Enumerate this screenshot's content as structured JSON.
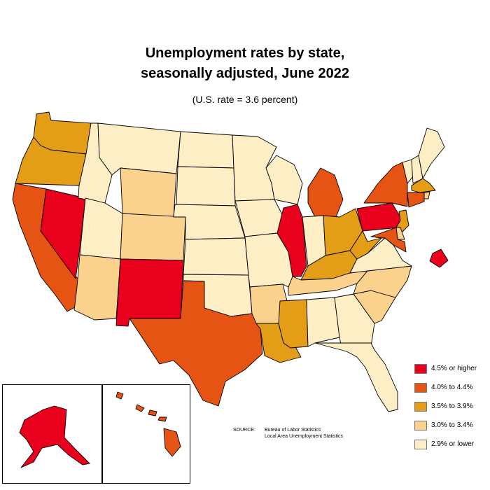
{
  "title_line1": "Unemployment rates by state,",
  "title_line2": "seasonally adjusted, June 2022",
  "subtitle": "(U.S. rate = 3.6 percent)",
  "legend": [
    {
      "label": "4.5% or higher",
      "color": "#e8001c"
    },
    {
      "label": "4.0% to 4.4%",
      "color": "#e65414"
    },
    {
      "label": "3.5% to 3.9%",
      "color": "#e39d17"
    },
    {
      "label": "3.0% to 3.4%",
      "color": "#fbd28d"
    },
    {
      "label": "2.9% or lower",
      "color": "#fdeec5"
    }
  ],
  "source_key": "SOURCE:",
  "source_line1": "Bureau of Labor Statistics",
  "source_line2": "Local Area Unemployment Statistics",
  "states": {
    "WA": 3,
    "OR": 3,
    "CA": 4,
    "NV": 5,
    "ID": 1,
    "MT": 1,
    "WY": 2,
    "UT": 1,
    "AZ": 2,
    "CO": 2,
    "NM": 5,
    "ND": 1,
    "SD": 1,
    "NE": 1,
    "KS": 1,
    "OK": 1,
    "TX": 4,
    "MN": 1,
    "IA": 1,
    "MO": 1,
    "AR": 2,
    "LA": 3,
    "WI": 1,
    "IL": 5,
    "MI": 4,
    "IN": 1,
    "OH": 3,
    "KY": 3,
    "TN": 2,
    "MS": 3,
    "AL": 1,
    "GA": 1,
    "FL": 1,
    "SC": 2,
    "NC": 2,
    "VA": 1,
    "WV": 3,
    "PA": 5,
    "NY": 4,
    "VT": 1,
    "NH": 1,
    "ME": 1,
    "MA": 3,
    "RI": 2,
    "CT": 4,
    "NJ": 3,
    "DE": 2,
    "MD": 4,
    "DC": 5,
    "AK": 5,
    "HI": 4
  }
}
